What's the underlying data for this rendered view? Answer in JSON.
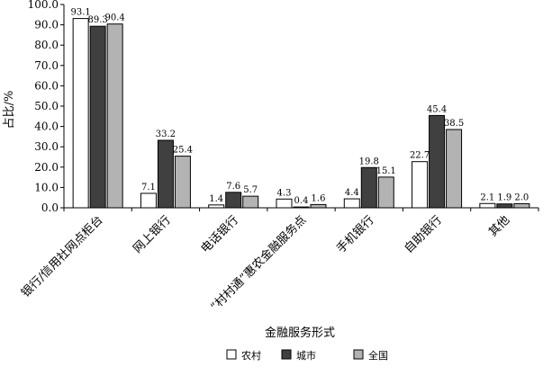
{
  "chart_data": {
    "type": "bar",
    "ylabel": "占比/%",
    "xlabel": "金融服务形式",
    "ylim": [
      0,
      100
    ],
    "yticks": [
      "0.0",
      "10.0",
      "20.0",
      "30.0",
      "40.0",
      "50.0",
      "60.0",
      "70.0",
      "80.0",
      "90.0",
      "100.0"
    ],
    "categories": [
      "银行/信用社网点柜台",
      "网上银行",
      "电话银行",
      "“村村通”惠农金融服务点",
      "手机银行",
      "自助银行",
      "其他"
    ],
    "series": [
      {
        "name": "农村",
        "color": "#ffffff",
        "values": [
          93.1,
          7.1,
          1.4,
          4.3,
          4.4,
          22.7,
          2.1
        ],
        "labels": [
          "93.1",
          "7.1",
          "1.4",
          "4.3",
          "4.4",
          "22.7",
          "2.1"
        ]
      },
      {
        "name": "城市",
        "color": "#404040",
        "values": [
          89.3,
          33.2,
          7.6,
          0.4,
          19.8,
          45.4,
          1.9
        ],
        "labels": [
          "89.3",
          "33.2",
          "7.6",
          "0.4",
          "19.8",
          "45.4",
          "1.9"
        ]
      },
      {
        "name": "全国",
        "color": "#b3b3b3",
        "values": [
          90.4,
          25.4,
          5.7,
          1.6,
          15.1,
          38.5,
          2.0
        ],
        "labels": [
          "90.4",
          "25.4",
          "5.7",
          "1.6",
          "15.1",
          "38.5",
          "2.0"
        ]
      }
    ],
    "legend_position": "bottom",
    "grid": false
  }
}
